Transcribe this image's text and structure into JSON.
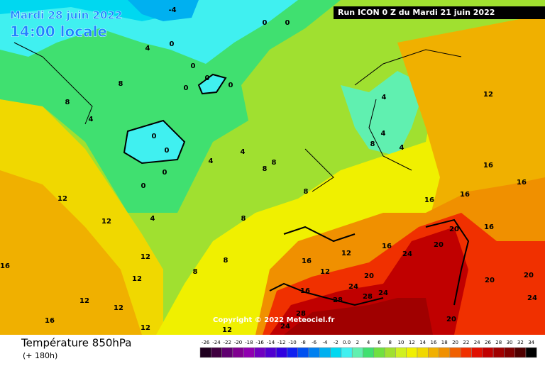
{
  "header": {
    "date": "Mardi 28 juin 2022",
    "time": "14:00 locale",
    "run": "Run ICON 0 Z du Mardi 21 juin 2022"
  },
  "copyright": "Copyright © 2022 Meteociel.fr",
  "footer": {
    "title": "Température 850hPa",
    "lead": "(+ 180h)"
  },
  "legend": {
    "scale": [
      {
        "label": "-26",
        "color": "#200020"
      },
      {
        "label": "-24",
        "color": "#400040"
      },
      {
        "label": "-22",
        "color": "#600070"
      },
      {
        "label": "-20",
        "color": "#800090"
      },
      {
        "label": "-18",
        "color": "#9000b0"
      },
      {
        "label": "-16",
        "color": "#7000c0"
      },
      {
        "label": "-14",
        "color": "#5000d0"
      },
      {
        "label": "-12",
        "color": "#3000e0"
      },
      {
        "label": "-10",
        "color": "#1020f0"
      },
      {
        "label": "-8",
        "color": "#0050f0"
      },
      {
        "label": "-6",
        "color": "#0080f0"
      },
      {
        "label": "-4",
        "color": "#00b0f0"
      },
      {
        "label": "-2",
        "color": "#00d8f0"
      },
      {
        "label": "0.0",
        "color": "#40f0f0"
      },
      {
        "label": "2",
        "color": "#60f0b0"
      },
      {
        "label": "4",
        "color": "#40e070"
      },
      {
        "label": "6",
        "color": "#70e040"
      },
      {
        "label": "8",
        "color": "#a0e030"
      },
      {
        "label": "10",
        "color": "#d0f020"
      },
      {
        "label": "12",
        "color": "#f0f000"
      },
      {
        "label": "14",
        "color": "#f0d800"
      },
      {
        "label": "16",
        "color": "#f0b000"
      },
      {
        "label": "18",
        "color": "#f09000"
      },
      {
        "label": "20",
        "color": "#f06000"
      },
      {
        "label": "22",
        "color": "#f03000"
      },
      {
        "label": "24",
        "color": "#e01000"
      },
      {
        "label": "26",
        "color": "#c00000"
      },
      {
        "label": "28",
        "color": "#a00000"
      },
      {
        "label": "30",
        "color": "#800000"
      },
      {
        "label": "32",
        "color": "#500000"
      },
      {
        "label": "34",
        "color": "#000000"
      }
    ]
  },
  "contour_labels": [
    "0",
    "0",
    "-4",
    "4",
    "0",
    "0",
    "0",
    "0",
    "0",
    "0",
    "0",
    "0",
    "0",
    "4",
    "4",
    "8",
    "8",
    "4",
    "8",
    "8",
    "12",
    "12",
    "12",
    "16",
    "12",
    "16",
    "12",
    "12",
    "16",
    "12",
    "20",
    "24",
    "28",
    "24",
    "24",
    "20",
    "20",
    "16",
    "16",
    "16",
    "12",
    "4",
    "4",
    "16",
    "20",
    "20",
    "24",
    "20",
    "28",
    "24",
    "28",
    "16",
    "12",
    "8",
    "8",
    "12",
    "12",
    "8",
    "8",
    "4",
    "4",
    "16",
    "16",
    "8"
  ]
}
